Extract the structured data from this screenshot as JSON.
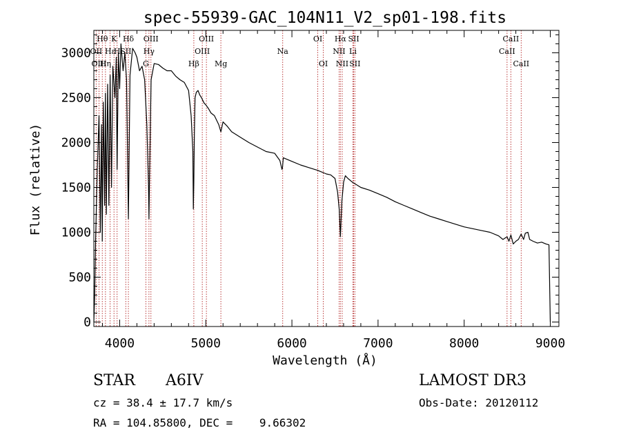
{
  "chart_data": {
    "type": "line",
    "title": "spec-55939-GAC_104N11_V2_sp01-198.fits",
    "xlabel": "Wavelength (Å)",
    "ylabel": "Flux (relative)",
    "xlim": [
      3700,
      9100
    ],
    "ylim": [
      -50,
      3250
    ],
    "x_ticks": [
      4000,
      5000,
      6000,
      7000,
      8000,
      9000
    ],
    "y_ticks": [
      0,
      500,
      1000,
      1500,
      2000,
      2500,
      3000
    ],
    "grid": false,
    "series": [
      {
        "name": "spectrum",
        "x": [
          3700,
          3710,
          3720,
          3740,
          3760,
          3775,
          3790,
          3798,
          3810,
          3825,
          3835,
          3845,
          3860,
          3875,
          3889,
          3905,
          3920,
          3945,
          3960,
          3970,
          3985,
          4000,
          4015,
          4040,
          4060,
          4080,
          4101,
          4120,
          4150,
          4180,
          4200,
          4230,
          4260,
          4290,
          4315,
          4335,
          4340,
          4345,
          4365,
          4400,
          4450,
          4500,
          4550,
          4600,
          4650,
          4700,
          4750,
          4800,
          4830,
          4850,
          4855,
          4861,
          4867,
          4875,
          4890,
          4910,
          4930,
          4950,
          4980,
          5000,
          5030,
          5060,
          5100,
          5150,
          5175,
          5200,
          5250,
          5300,
          5400,
          5500,
          5600,
          5700,
          5800,
          5860,
          5885,
          5891,
          5900,
          5950,
          6000,
          6100,
          6200,
          6300,
          6400,
          6450,
          6500,
          6530,
          6550,
          6563,
          6580,
          6600,
          6620,
          6650,
          6700,
          6750,
          6800,
          6900,
          7000,
          7100,
          7200,
          7300,
          7400,
          7500,
          7600,
          7700,
          7800,
          7900,
          8000,
          8100,
          8200,
          8300,
          8400,
          8450,
          8498,
          8520,
          8542,
          8570,
          8600,
          8630,
          8662,
          8690,
          8710,
          8740,
          8760,
          8800,
          8850,
          8900,
          8950,
          8985,
          9000
        ],
        "y": [
          0,
          300,
          900,
          1700,
          2300,
          1000,
          2200,
          900,
          2450,
          1300,
          2550,
          1200,
          2650,
          1300,
          2750,
          1500,
          2850,
          2500,
          2950,
          1700,
          3000,
          2600,
          3100,
          2800,
          3000,
          2700,
          1150,
          2750,
          3050,
          3000,
          2950,
          2800,
          2850,
          2700,
          2200,
          1500,
          1150,
          1500,
          2700,
          2880,
          2870,
          2830,
          2800,
          2800,
          2740,
          2700,
          2670,
          2580,
          2300,
          1900,
          1260,
          1550,
          2100,
          2500,
          2560,
          2580,
          2530,
          2500,
          2440,
          2420,
          2380,
          2330,
          2300,
          2200,
          2120,
          2230,
          2180,
          2120,
          2060,
          2000,
          1950,
          1900,
          1880,
          1800,
          1700,
          1730,
          1830,
          1810,
          1790,
          1750,
          1720,
          1690,
          1650,
          1640,
          1600,
          1450,
          1250,
          950,
          1350,
          1560,
          1630,
          1600,
          1560,
          1530,
          1500,
          1470,
          1430,
          1390,
          1340,
          1300,
          1260,
          1220,
          1180,
          1150,
          1120,
          1090,
          1060,
          1040,
          1020,
          1000,
          960,
          920,
          950,
          900,
          970,
          870,
          900,
          920,
          980,
          920,
          990,
          1000,
          920,
          900,
          880,
          890,
          870,
          860,
          0
        ]
      }
    ],
    "line_markers": [
      {
        "label": "Hθ",
        "wavelength": 3798,
        "row": 0
      },
      {
        "label": "OII",
        "wavelength": 3727,
        "row": 1
      },
      {
        "label": "OIII",
        "wavelength": 3760,
        "row": 2
      },
      {
        "label": "Hη",
        "wavelength": 3835,
        "row": 2
      },
      {
        "label": "K",
        "wavelength": 3934,
        "row": 0
      },
      {
        "label": "Hε",
        "wavelength": 3889,
        "row": 1
      },
      {
        "label": "H",
        "wavelength": 3970,
        "row": 1
      },
      {
        "label": "Hδ",
        "wavelength": 4101,
        "row": 0
      },
      {
        "label": "SII",
        "wavelength": 4071,
        "row": 1
      },
      {
        "label": "OIII",
        "wavelength": 4363,
        "row": 0
      },
      {
        "label": "Hγ",
        "wavelength": 4340,
        "row": 1
      },
      {
        "label": "G",
        "wavelength": 4304,
        "row": 2
      },
      {
        "label": "Hβ",
        "wavelength": 4861,
        "row": 2
      },
      {
        "label": "OIII",
        "wavelength": 4959,
        "row": 1
      },
      {
        "label": "OIII",
        "wavelength": 5007,
        "row": 0
      },
      {
        "label": "Mg",
        "wavelength": 5175,
        "row": 2
      },
      {
        "label": "Na",
        "wavelength": 5893,
        "row": 1
      },
      {
        "label": "OI",
        "wavelength": 6300,
        "row": 0
      },
      {
        "label": "OI",
        "wavelength": 6364,
        "row": 2
      },
      {
        "label": "Hα",
        "wavelength": 6563,
        "row": 0
      },
      {
        "label": "NII",
        "wavelength": 6548,
        "row": 1
      },
      {
        "label": "NII",
        "wavelength": 6584,
        "row": 2
      },
      {
        "label": "SII",
        "wavelength": 6717,
        "row": 0
      },
      {
        "label": "Li",
        "wavelength": 6708,
        "row": 1
      },
      {
        "label": "SII",
        "wavelength": 6731,
        "row": 2
      },
      {
        "label": "CaII",
        "wavelength": 8542,
        "row": 0
      },
      {
        "label": "CaII",
        "wavelength": 8498,
        "row": 1
      },
      {
        "label": "CaII",
        "wavelength": 8662,
        "row": 2
      }
    ]
  },
  "info": {
    "class": "STAR",
    "subclass": "A6IV",
    "survey": "LAMOST DR3",
    "cz": "cz = 38.4 ± 17.7 km/s",
    "obs_date": "Obs-Date: 20120112",
    "radec": "RA = 104.85800, DEC =    9.66302"
  }
}
